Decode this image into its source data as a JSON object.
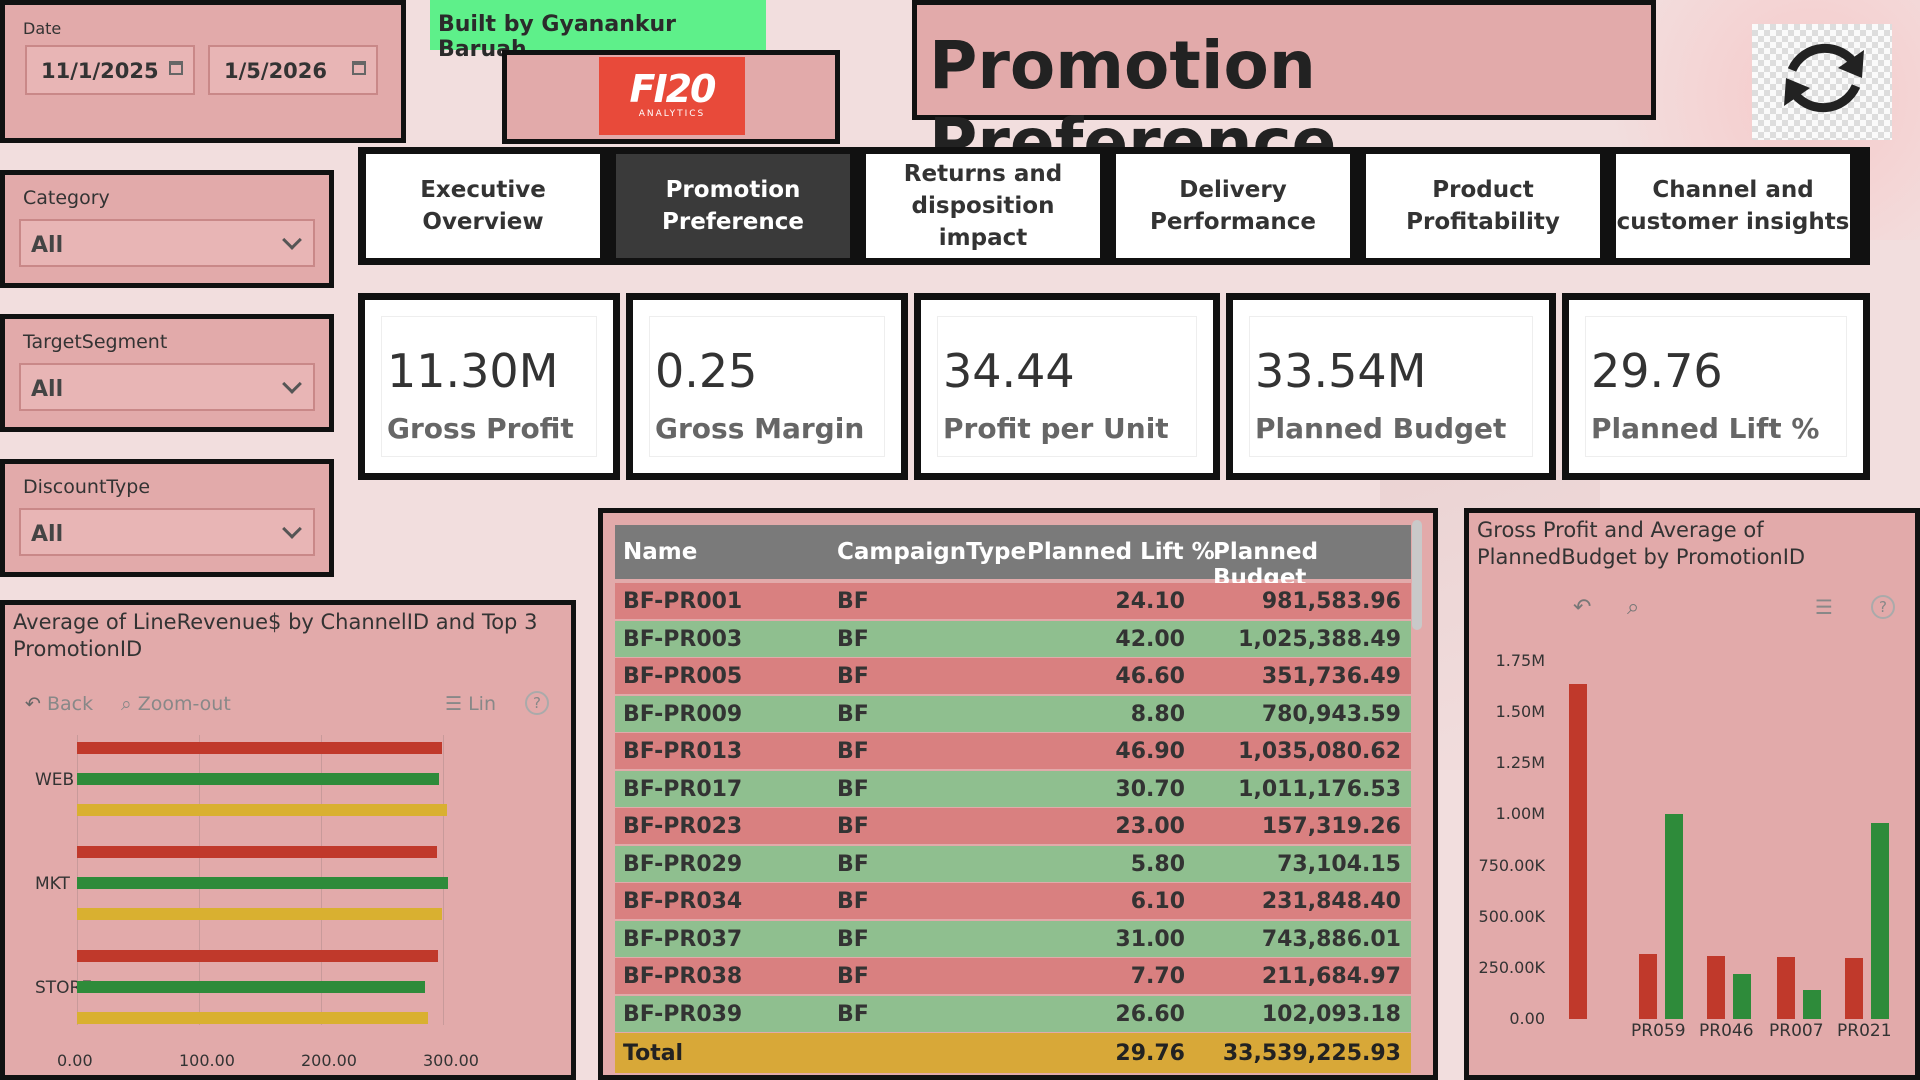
{
  "colors": {
    "red": "#c0392b",
    "green": "#2e8b3a",
    "yellow": "#d9b030",
    "row_red": "#d98080",
    "row_green": "#8fbf8f",
    "panel": "#e2aaaa"
  },
  "date_slicer": {
    "label": "Date",
    "start": "11/1/2025",
    "end": "1/5/2026"
  },
  "slicers": [
    {
      "label": "Category",
      "value": "All"
    },
    {
      "label": "TargetSegment",
      "value": "All"
    },
    {
      "label": "DiscountType",
      "value": "All"
    }
  ],
  "built_by": "Built by Gyanankur Baruah",
  "logo": {
    "main": "FI20",
    "sub": "ANALYTICS"
  },
  "page_title": "Promotion Preference",
  "refresh_icon": "refresh-icon",
  "tabs": [
    {
      "label": "Executive Overview",
      "active": false
    },
    {
      "label": "Promotion Preference",
      "active": true
    },
    {
      "label": "Returns and disposition impact",
      "active": false
    },
    {
      "label": "Delivery Performance",
      "active": false
    },
    {
      "label": "Product Profitability",
      "active": false
    },
    {
      "label": "Channel and customer insights",
      "active": false
    }
  ],
  "kpis": [
    {
      "value": "11.30M",
      "label": "Gross Profit"
    },
    {
      "value": "0.25",
      "label": "Gross Margin"
    },
    {
      "value": "34.44",
      "label": "Profit per Unit"
    },
    {
      "value": "33.54M",
      "label": "Planned Budget"
    },
    {
      "value": "29.76",
      "label": "Planned Lift %"
    }
  ],
  "bar_chart": {
    "title": "Average of LineRevenue$ by ChannelID and Top 3 PromotionID",
    "toolbar": {
      "back": "Back",
      "zoom": "Zoom-out",
      "lin": "Lin"
    }
  },
  "table": {
    "headers": [
      "Name",
      "CampaignType",
      "Planned Lift %",
      "Planned Budget"
    ],
    "rows": [
      [
        "BF-PR001",
        "BF",
        "24.10",
        "981,583.96"
      ],
      [
        "BF-PR003",
        "BF",
        "42.00",
        "1,025,388.49"
      ],
      [
        "BF-PR005",
        "BF",
        "46.60",
        "351,736.49"
      ],
      [
        "BF-PR009",
        "BF",
        "8.80",
        "780,943.59"
      ],
      [
        "BF-PR013",
        "BF",
        "46.90",
        "1,035,080.62"
      ],
      [
        "BF-PR017",
        "BF",
        "30.70",
        "1,011,176.53"
      ],
      [
        "BF-PR023",
        "BF",
        "23.00",
        "157,319.26"
      ],
      [
        "BF-PR029",
        "BF",
        "5.80",
        "73,104.15"
      ],
      [
        "BF-PR034",
        "BF",
        "6.10",
        "231,848.40"
      ],
      [
        "BF-PR037",
        "BF",
        "31.00",
        "743,886.01"
      ],
      [
        "BF-PR038",
        "BF",
        "7.70",
        "211,684.97"
      ],
      [
        "BF-PR039",
        "BF",
        "26.60",
        "102,093.18"
      ]
    ],
    "total": {
      "label": "Total",
      "lift": "29.76",
      "budget": "33,539,225.93"
    }
  },
  "chart_data": [
    {
      "type": "bar",
      "orientation": "horizontal",
      "title": "Average of LineRevenue$ by ChannelID and Top 3 PromotionID",
      "categories": [
        "WEB",
        "MKT",
        "STORE"
      ],
      "series": [
        {
          "values": [
            299,
            295,
            296
          ],
          "color": "#c0392b"
        },
        {
          "values": [
            297,
            304,
            285
          ],
          "color": "#2e8b3a"
        },
        {
          "values": [
            303,
            299,
            288
          ],
          "color": "#d9b030"
        }
      ],
      "xticks": [
        "0.00",
        "100.00",
        "200.00",
        "300.00"
      ],
      "xlim": [
        0,
        300
      ],
      "grid": true
    },
    {
      "type": "bar",
      "title": "Gross Profit and Average of PlannedBudget by PromotionID",
      "categories": [
        "",
        "PR059",
        "PR046",
        "PR007",
        "PR021"
      ],
      "series": [
        {
          "values": [
            1640000,
            320000,
            310000,
            305000,
            300000
          ],
          "color": "#c0392b"
        },
        {
          "values": [
            null,
            1000000,
            220000,
            140000,
            960000
          ],
          "color": "#2e8b3a"
        }
      ],
      "yticks": [
        "0.00",
        "250.00K",
        "500.00K",
        "750.00K",
        "1.00M",
        "1.25M",
        "1.50M",
        "1.75M"
      ],
      "ylim": [
        0,
        1750000
      ]
    }
  ]
}
